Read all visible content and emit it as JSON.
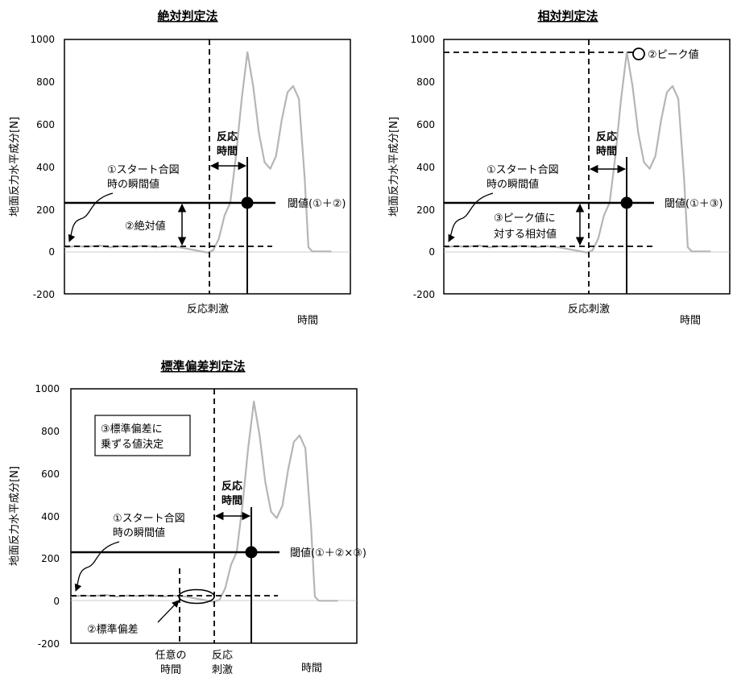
{
  "chart_data": [
    {
      "type": "line",
      "title": "絶対判定法",
      "ylabel": "地面反力水平成分[N]",
      "xlabel": "時間",
      "ylim": [
        -200,
        1000
      ],
      "yticks": [
        "1000",
        "800",
        "600",
        "400",
        "200",
        "0",
        "-200"
      ],
      "grid": false,
      "series": [
        {
          "x": [
            0,
            0.06,
            0.12,
            0.18,
            0.24,
            0.3,
            0.36,
            0.42,
            0.48,
            0.54,
            0.6,
            0.66,
            0.72,
            0.75,
            0.78,
            0.81,
            0.84,
            0.87,
            0.9,
            0.93,
            0.96,
            0.99,
            1.02,
            1.05,
            1.08,
            1.11,
            1.14,
            1.17,
            1.2,
            1.23,
            1.26,
            1.28,
            1.3,
            1.4
          ],
          "y": [
            20,
            25,
            22,
            28,
            20,
            25,
            22,
            27,
            20,
            25,
            20,
            10,
            0,
            -5,
            5,
            60,
            170,
            230,
            450,
            720,
            940,
            780,
            560,
            420,
            390,
            450,
            620,
            750,
            780,
            720,
            350,
            20,
            0,
            0
          ]
        }
      ],
      "annotations": {
        "stimulus": "反応刺激",
        "reaction_time": [
          "反応",
          "時間"
        ],
        "start_value": [
          "①スタート合図",
          "時の瞬間値"
        ],
        "offset": "②絶対値",
        "threshold": "閾値(①＋②)"
      },
      "threshold_value": 230,
      "baseline_value": 25
    },
    {
      "type": "line",
      "title": "相対判定法",
      "ylabel": "地面反力水平成分[N]",
      "xlabel": "時間",
      "ylim": [
        -200,
        1000
      ],
      "yticks": [
        "1000",
        "800",
        "600",
        "400",
        "200",
        "0",
        "-200"
      ],
      "grid": false,
      "series": [
        {
          "x": [
            0,
            0.06,
            0.12,
            0.18,
            0.24,
            0.3,
            0.36,
            0.42,
            0.48,
            0.54,
            0.6,
            0.66,
            0.72,
            0.75,
            0.78,
            0.81,
            0.84,
            0.87,
            0.9,
            0.93,
            0.96,
            0.99,
            1.02,
            1.05,
            1.08,
            1.11,
            1.14,
            1.17,
            1.2,
            1.23,
            1.26,
            1.28,
            1.3,
            1.4
          ],
          "y": [
            20,
            25,
            22,
            28,
            20,
            25,
            22,
            27,
            20,
            25,
            20,
            10,
            0,
            -5,
            5,
            60,
            170,
            230,
            450,
            720,
            940,
            780,
            560,
            420,
            390,
            450,
            620,
            750,
            780,
            720,
            350,
            20,
            0,
            0
          ]
        }
      ],
      "annotations": {
        "stimulus": "反応刺激",
        "reaction_time": [
          "反応",
          "時間"
        ],
        "start_value": [
          "①スタート合図",
          "時の瞬間値"
        ],
        "peak": "②ピーク値",
        "offset": [
          "③ピーク値に",
          "対する相対値"
        ],
        "threshold": "閾値(①＋③)"
      },
      "threshold_value": 230,
      "baseline_value": 25,
      "peak_value": 940
    },
    {
      "type": "line",
      "title": "標準偏差判定法",
      "ylabel": "地面反力水平成分[N]",
      "xlabel": "時間",
      "ylim": [
        -200,
        1000
      ],
      "yticks": [
        "1000",
        "800",
        "600",
        "400",
        "200",
        "0",
        "-200"
      ],
      "grid": false,
      "series": [
        {
          "x": [
            0,
            0.06,
            0.12,
            0.18,
            0.24,
            0.3,
            0.36,
            0.42,
            0.48,
            0.54,
            0.6,
            0.66,
            0.72,
            0.75,
            0.78,
            0.81,
            0.84,
            0.87,
            0.9,
            0.93,
            0.96,
            0.99,
            1.02,
            1.05,
            1.08,
            1.11,
            1.14,
            1.17,
            1.2,
            1.23,
            1.26,
            1.28,
            1.3,
            1.4
          ],
          "y": [
            20,
            25,
            22,
            28,
            20,
            25,
            22,
            27,
            20,
            25,
            20,
            10,
            0,
            -5,
            5,
            60,
            170,
            230,
            450,
            720,
            940,
            780,
            560,
            420,
            390,
            450,
            620,
            750,
            780,
            720,
            350,
            20,
            0,
            0
          ]
        }
      ],
      "annotations": {
        "arbitrary_time": [
          "任意の",
          "時間"
        ],
        "stimulus": [
          "反応",
          "刺激"
        ],
        "reaction_time": [
          "反応",
          "時間"
        ],
        "start_value": [
          "①スタート合図",
          "時の瞬間値"
        ],
        "sd": "②標準偏差",
        "multiplier": [
          "③標準偏差に",
          "乗ずる値決定"
        ],
        "threshold": "閾値(①＋②×③)"
      },
      "threshold_value": 230,
      "baseline_value": 25
    }
  ]
}
